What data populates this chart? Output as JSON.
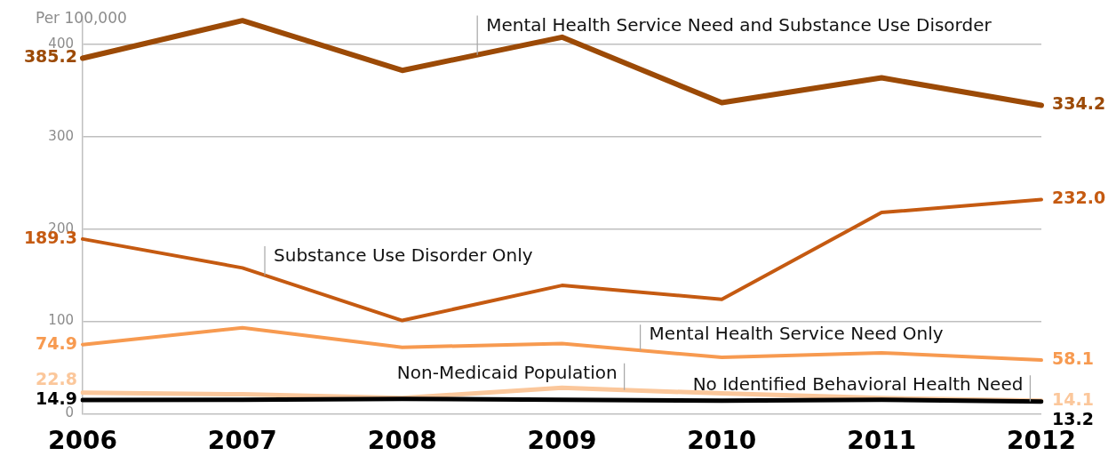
{
  "chart_data": {
    "type": "line",
    "ylabel": "Per 100,000",
    "categories": [
      "2006",
      "2007",
      "2008",
      "2009",
      "2010",
      "2011",
      "2012"
    ],
    "ylim": [
      0,
      430
    ],
    "yticks": [
      0,
      100,
      200,
      300,
      400
    ],
    "grid": "y",
    "legend": false,
    "marker": "none",
    "line_style": "solid",
    "series": [
      {
        "name": "Mental Health Service Need and Substance Use Disorder",
        "color": "#9c4a06",
        "values": [
          385.2,
          426,
          372,
          408,
          337,
          364,
          334.2
        ],
        "value_labels": [
          "385.2",
          null,
          null,
          null,
          null,
          null,
          "334.2"
        ]
      },
      {
        "name": "Substance Use Disorder Only",
        "color": "#c55a11",
        "values": [
          189.3,
          158,
          101,
          139,
          124,
          218,
          232.0
        ],
        "value_labels": [
          "189.3",
          null,
          null,
          null,
          null,
          null,
          "232.0"
        ]
      },
      {
        "name": "Mental Health Service Need Only",
        "color": "#f79a50",
        "values": [
          74.9,
          93,
          72,
          76,
          61,
          66,
          58.1
        ],
        "value_labels": [
          "74.9",
          null,
          null,
          null,
          null,
          null,
          "58.1"
        ]
      },
      {
        "name": "Non-Medicaid Population",
        "color": "#fbc79b",
        "values": [
          22.8,
          21,
          17,
          28,
          22,
          17,
          14.1
        ],
        "value_labels": [
          "22.8",
          null,
          null,
          null,
          null,
          null,
          "14.1"
        ]
      },
      {
        "name": "No Identified Behavioral Health Need",
        "color": "#000000",
        "values": [
          14.9,
          15,
          16,
          15,
          14,
          15,
          13.2
        ],
        "value_labels": [
          "14.9",
          null,
          null,
          null,
          null,
          null,
          "13.2"
        ]
      }
    ]
  }
}
